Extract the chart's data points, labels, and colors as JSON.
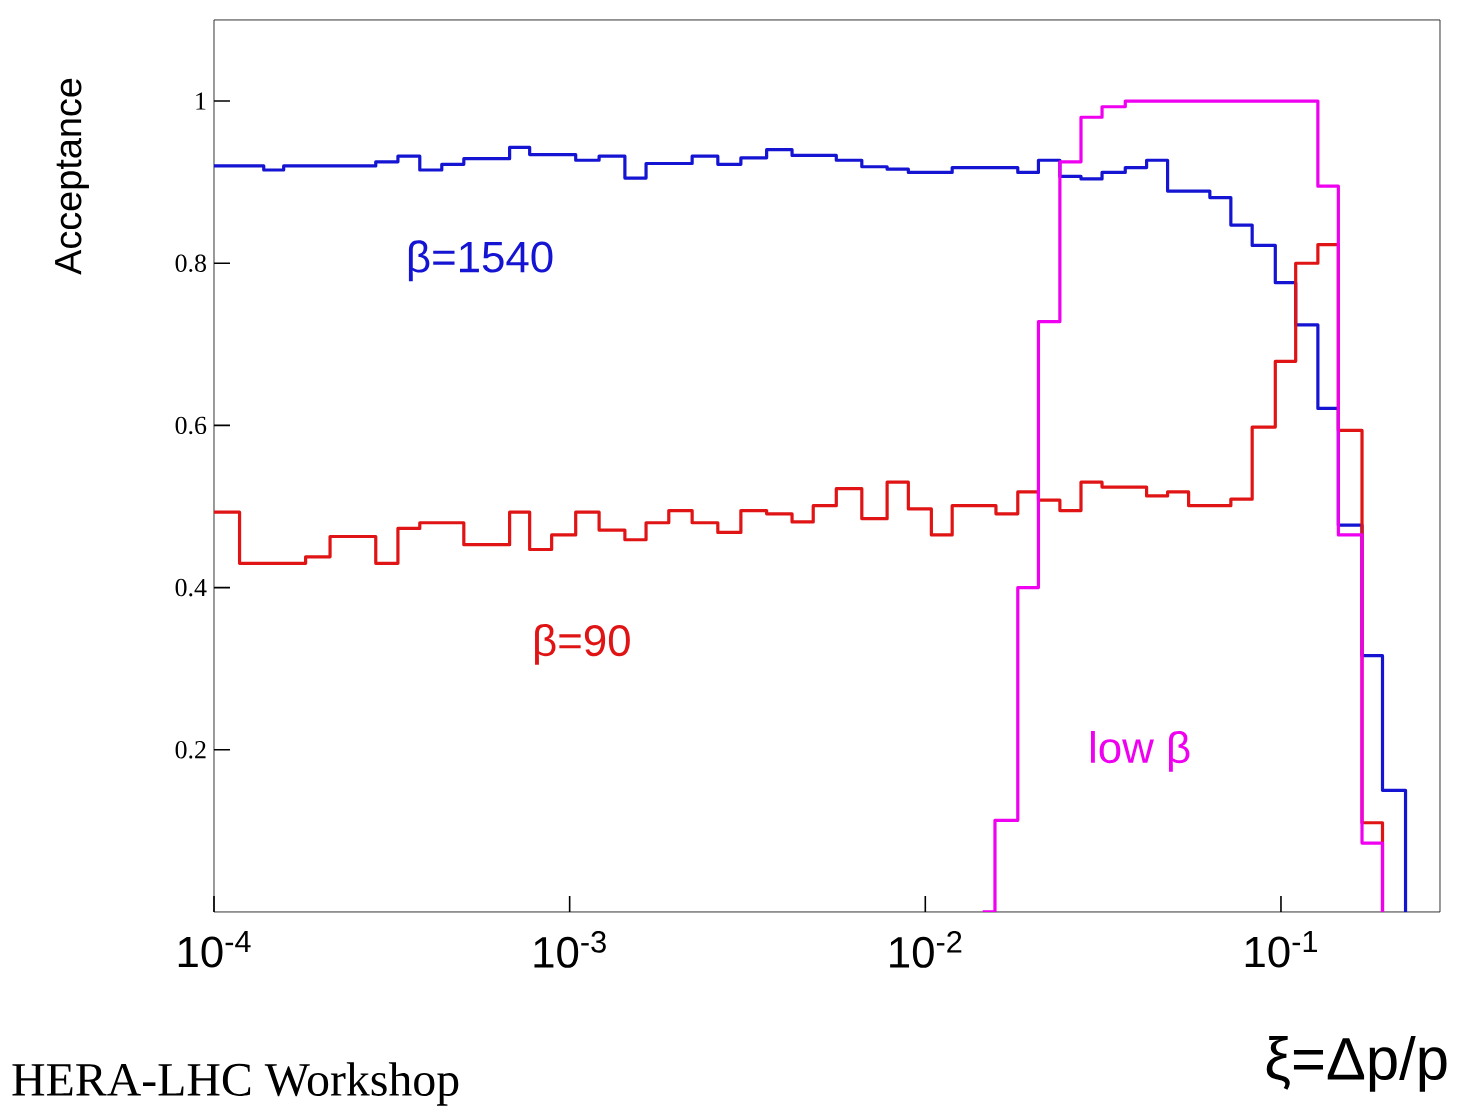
{
  "chart_data": {
    "type": "step",
    "xlabel": "ξ=Δp/p",
    "ylabel": "Acceptance",
    "log": "x",
    "xlim": [
      0.0001,
      0.28
    ],
    "ylim": [
      0,
      1.1
    ],
    "xticks": [
      {
        "value": 0.0001,
        "label": "10$^{-4}$"
      },
      {
        "value": 0.001,
        "label": "10$^{-3}$"
      },
      {
        "value": 0.01,
        "label": "10$^{-2}$"
      },
      {
        "value": 0.1,
        "label": "10$^{-1}$"
      }
    ],
    "yticks": [
      0.2,
      0.4,
      0.6,
      0.8,
      1
    ],
    "legend": false,
    "grid": false,
    "annotations": [
      "HERA-LHC Workshop"
    ],
    "series": [
      {
        "name": "β=1540",
        "color": "#1414d2",
        "x": [
          0.0001,
          0.000138,
          0.000157,
          0.000285,
          0.000329,
          0.000379,
          0.000437,
          0.000504,
          0.000678,
          0.000772,
          0.00104,
          0.00121,
          0.00143,
          0.00164,
          0.00221,
          0.00261,
          0.00303,
          0.00358,
          0.00422,
          0.00562,
          0.00663,
          0.00781,
          0.00896,
          0.0119,
          0.0182,
          0.0208,
          0.0239,
          0.0274,
          0.0314,
          0.0365,
          0.0419,
          0.048,
          0.0631,
          0.0723,
          0.083,
          0.0964,
          0.11,
          0.127,
          0.145,
          0.169,
          0.193,
          0.224
        ],
        "values": [
          0.92,
          0.915,
          0.92,
          0.925,
          0.932,
          0.915,
          0.922,
          0.929,
          0.943,
          0.934,
          0.927,
          0.932,
          0.905,
          0.923,
          0.932,
          0.922,
          0.93,
          0.94,
          0.933,
          0.927,
          0.919,
          0.916,
          0.912,
          0.918,
          0.912,
          0.927,
          0.907,
          0.904,
          0.912,
          0.918,
          0.927,
          0.889,
          0.881,
          0.847,
          0.822,
          0.776,
          0.724,
          0.621,
          0.477,
          0.316,
          0.15,
          0
        ]
      },
      {
        "name": "β=90",
        "color": "#e01414",
        "x": [
          0.0001,
          0.000118,
          0.000181,
          0.000212,
          0.000285,
          0.000329,
          0.000379,
          0.000504,
          0.000678,
          0.000772,
          0.00089,
          0.00104,
          0.00121,
          0.00143,
          0.00164,
          0.0019,
          0.00221,
          0.00261,
          0.00303,
          0.00358,
          0.00422,
          0.00484,
          0.00562,
          0.00663,
          0.00781,
          0.00896,
          0.0104,
          0.0119,
          0.0158,
          0.0182,
          0.0208,
          0.0239,
          0.0274,
          0.0314,
          0.0419,
          0.048,
          0.055,
          0.0723,
          0.083,
          0.0964,
          0.11,
          0.127,
          0.145,
          0.169,
          0.193
        ],
        "values": [
          0.493,
          0.43,
          0.438,
          0.463,
          0.43,
          0.473,
          0.48,
          0.453,
          0.493,
          0.447,
          0.465,
          0.493,
          0.471,
          0.459,
          0.48,
          0.495,
          0.48,
          0.468,
          0.495,
          0.491,
          0.481,
          0.501,
          0.522,
          0.485,
          0.53,
          0.497,
          0.465,
          0.501,
          0.491,
          0.518,
          0.508,
          0.495,
          0.53,
          0.524,
          0.513,
          0.518,
          0.501,
          0.509,
          0.598,
          0.679,
          0.8,
          0.823,
          0.594,
          0.11,
          0
        ]
      },
      {
        "name": "low   β",
        "color": "#f000f0",
        "x": [
          0.0145,
          0.0157,
          0.0182,
          0.0208,
          0.0239,
          0.0274,
          0.0314,
          0.0365,
          0.127,
          0.145,
          0.169,
          0.193
        ],
        "values": [
          0,
          0.113,
          0.4,
          0.728,
          0.925,
          0.98,
          0.993,
          1.0,
          0.895,
          0.465,
          0.085,
          0
        ]
      }
    ]
  }
}
